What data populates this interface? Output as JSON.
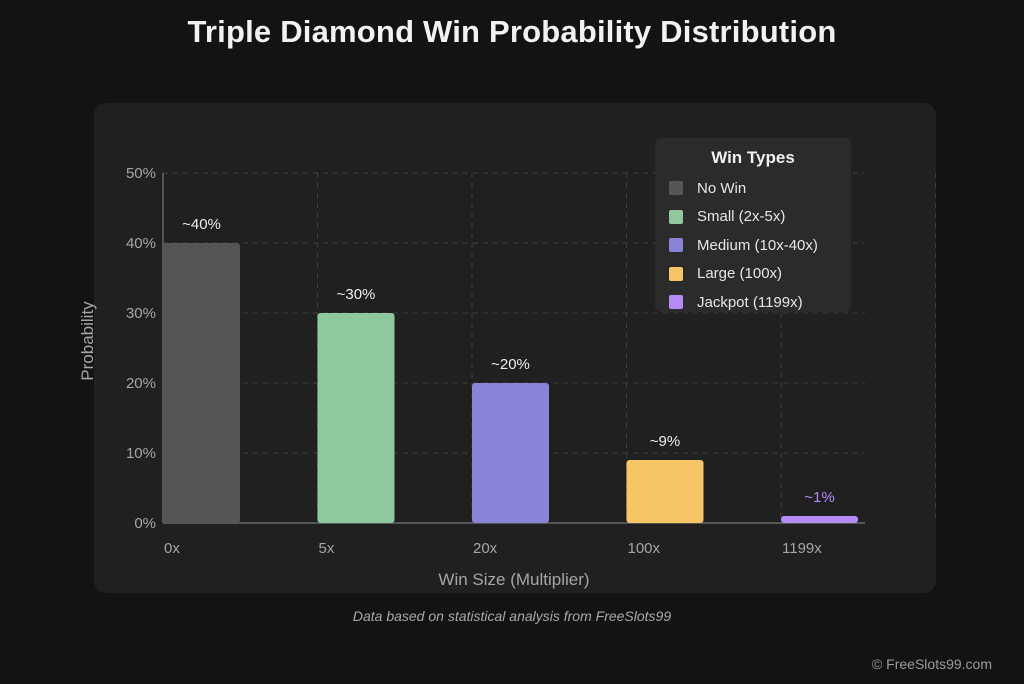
{
  "title": "Triple Diamond Win Probability Distribution",
  "chart_data": {
    "type": "bar",
    "categories": [
      "0x",
      "5x",
      "20x",
      "100x",
      "1199x"
    ],
    "values": [
      40,
      30,
      20,
      9,
      1
    ],
    "value_labels": [
      "~40%",
      "~30%",
      "~20%",
      "~9%",
      "~1%"
    ],
    "colors": [
      "#555555",
      "#8fc89c",
      "#8a84d8",
      "#f5c566",
      "#b48af5"
    ],
    "label_colors": [
      "#ededed",
      "#ededed",
      "#ededed",
      "#ededed",
      "#b48af5"
    ],
    "xlabel": "Win Size (Multiplier)",
    "ylabel": "Probability",
    "ylim": [
      0,
      50
    ],
    "yticks": [
      0,
      10,
      20,
      30,
      40,
      50
    ],
    "ytick_labels": [
      "0%",
      "10%",
      "20%",
      "30%",
      "40%",
      "50%"
    ],
    "grid": true,
    "legend": {
      "title": "Win Types",
      "placement": "top-right",
      "entries": [
        "No Win",
        "Small (2x-5x)",
        "Medium (10x-40x)",
        "Large (100x)",
        "Jackpot (1199x)"
      ]
    }
  },
  "footnote": "Data based on statistical analysis from FreeSlots99",
  "copyright": "© FreeSlots99.com"
}
